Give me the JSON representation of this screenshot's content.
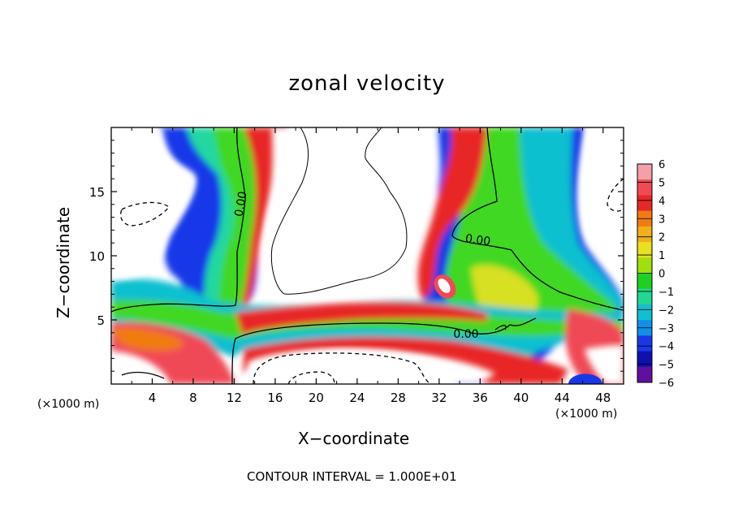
{
  "chart_data": {
    "type": "heatmap",
    "title": "zonal velocity",
    "xlabel": "X−coordinate",
    "ylabel": "Z−coordinate",
    "x_unit_label": "(×1000 m)",
    "xlim": [
      0,
      50
    ],
    "ylim": [
      0,
      20
    ],
    "x_ticks": [
      "4",
      "8",
      "12",
      "16",
      "20",
      "24",
      "28",
      "32",
      "36",
      "40",
      "44",
      "48"
    ],
    "y_ticks": [
      "5",
      "10",
      "15"
    ],
    "colorbar": {
      "range": [
        -6,
        6
      ],
      "labels": [
        "6",
        "5",
        "4",
        "3",
        "2",
        "1",
        "0",
        "−1",
        "−2",
        "−3",
        "−4",
        "−5",
        "−6"
      ],
      "colors": [
        "#f4a0a8",
        "#f04a56",
        "#e82828",
        "#f07c10",
        "#f0b018",
        "#e8e020",
        "#a0e010",
        "#20d020",
        "#20d890",
        "#10c0d0",
        "#1090e8",
        "#1838e8",
        "#1010b0",
        "#6010a0"
      ]
    },
    "contour_labels": [
      "0.00",
      "0.00",
      "0.00"
    ],
    "contour_interval_text": "CONTOUR INTERVAL = 1.000E+01"
  }
}
